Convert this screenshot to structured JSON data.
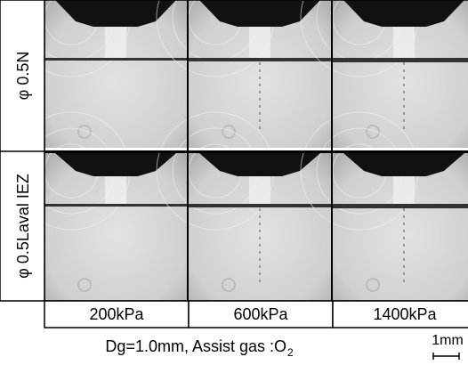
{
  "row_labels": [
    "φ 0.5N",
    "φ 0.5Laval IEZ"
  ],
  "column_labels": [
    "200kPa",
    "600kPa",
    "1400kPa"
  ],
  "caption": {
    "text": "Dg=1.0mm,  Assist  gas :O",
    "subscript": "2"
  },
  "scale_bar": "1mm"
}
